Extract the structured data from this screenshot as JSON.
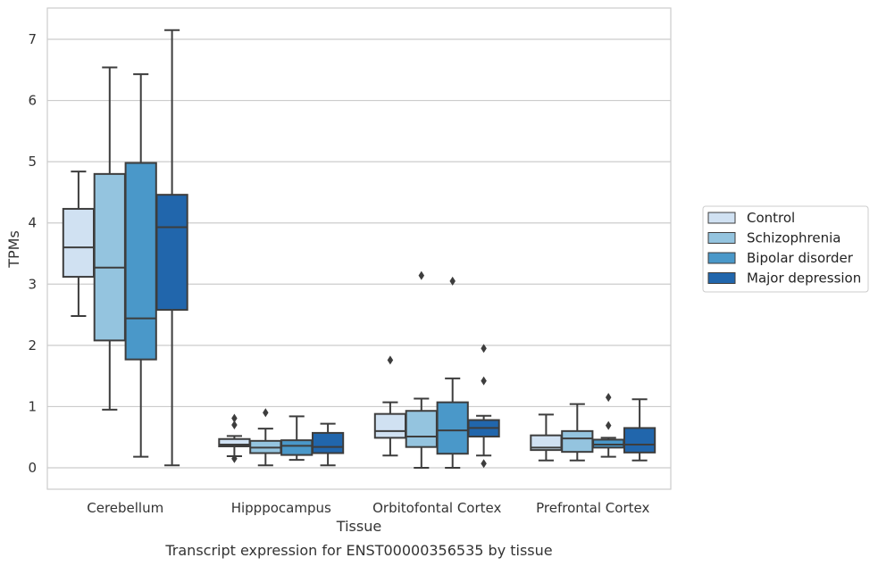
{
  "chart_data": {
    "type": "box",
    "caption": "Transcript expression for ENST00000356535 by tissue",
    "xlabel": "Tissue",
    "ylabel": "TPMs",
    "ylim": [
      -0.35,
      7.5
    ],
    "yticks": [
      0,
      1,
      2,
      3,
      4,
      5,
      6,
      7
    ],
    "grid": "horizontal",
    "legend_position": "right",
    "categories": [
      "Cerebellum",
      "Hipppocampus",
      "Orbitofontal Cortex",
      "Prefrontal Cortex"
    ],
    "series": [
      {
        "name": "Control",
        "color": "#d0e1f2",
        "boxes": [
          {
            "whisker_low": 2.48,
            "q1": 3.12,
            "median": 3.6,
            "q3": 4.23,
            "whisker_high": 4.84,
            "outliers": []
          },
          {
            "whisker_low": 0.19,
            "q1": 0.35,
            "median": 0.38,
            "q3": 0.47,
            "whisker_high": 0.52,
            "outliers": [
              0.81,
              0.7,
              0.15
            ]
          },
          {
            "whisker_low": 0.2,
            "q1": 0.49,
            "median": 0.6,
            "q3": 0.88,
            "whisker_high": 1.07,
            "outliers": [
              1.76
            ]
          },
          {
            "whisker_low": 0.12,
            "q1": 0.29,
            "median": 0.33,
            "q3": 0.53,
            "whisker_high": 0.87,
            "outliers": []
          }
        ]
      },
      {
        "name": "Schizophrenia",
        "color": "#94c4df",
        "boxes": [
          {
            "whisker_low": 0.95,
            "q1": 2.08,
            "median": 3.27,
            "q3": 4.8,
            "whisker_high": 6.54,
            "outliers": []
          },
          {
            "whisker_low": 0.04,
            "q1": 0.24,
            "median": 0.33,
            "q3": 0.44,
            "whisker_high": 0.64,
            "outliers": [
              0.9
            ]
          },
          {
            "whisker_low": 0.0,
            "q1": 0.34,
            "median": 0.51,
            "q3": 0.93,
            "whisker_high": 1.13,
            "outliers": [
              3.14
            ]
          },
          {
            "whisker_low": 0.12,
            "q1": 0.26,
            "median": 0.48,
            "q3": 0.6,
            "whisker_high": 1.04,
            "outliers": []
          }
        ]
      },
      {
        "name": "Bipolar disorder",
        "color": "#4a98c9",
        "boxes": [
          {
            "whisker_low": 0.18,
            "q1": 1.77,
            "median": 2.44,
            "q3": 4.98,
            "whisker_high": 6.43,
            "outliers": []
          },
          {
            "whisker_low": 0.13,
            "q1": 0.21,
            "median": 0.36,
            "q3": 0.45,
            "whisker_high": 0.84,
            "outliers": []
          },
          {
            "whisker_low": 0.0,
            "q1": 0.23,
            "median": 0.61,
            "q3": 1.07,
            "whisker_high": 1.46,
            "outliers": [
              3.05
            ]
          },
          {
            "whisker_low": 0.18,
            "q1": 0.33,
            "median": 0.38,
            "q3": 0.46,
            "whisker_high": 0.49,
            "outliers": [
              1.15,
              0.69
            ]
          }
        ]
      },
      {
        "name": "Major depression",
        "color": "#2166ac",
        "boxes": [
          {
            "whisker_low": 0.04,
            "q1": 2.58,
            "median": 3.93,
            "q3": 4.46,
            "whisker_high": 7.15,
            "outliers": []
          },
          {
            "whisker_low": 0.04,
            "q1": 0.24,
            "median": 0.34,
            "q3": 0.57,
            "whisker_high": 0.72,
            "outliers": []
          },
          {
            "whisker_low": 0.2,
            "q1": 0.51,
            "median": 0.65,
            "q3": 0.78,
            "whisker_high": 0.85,
            "outliers": [
              1.95,
              1.42,
              0.07
            ]
          },
          {
            "whisker_low": 0.12,
            "q1": 0.25,
            "median": 0.38,
            "q3": 0.65,
            "whisker_high": 1.12,
            "outliers": []
          }
        ]
      }
    ]
  }
}
